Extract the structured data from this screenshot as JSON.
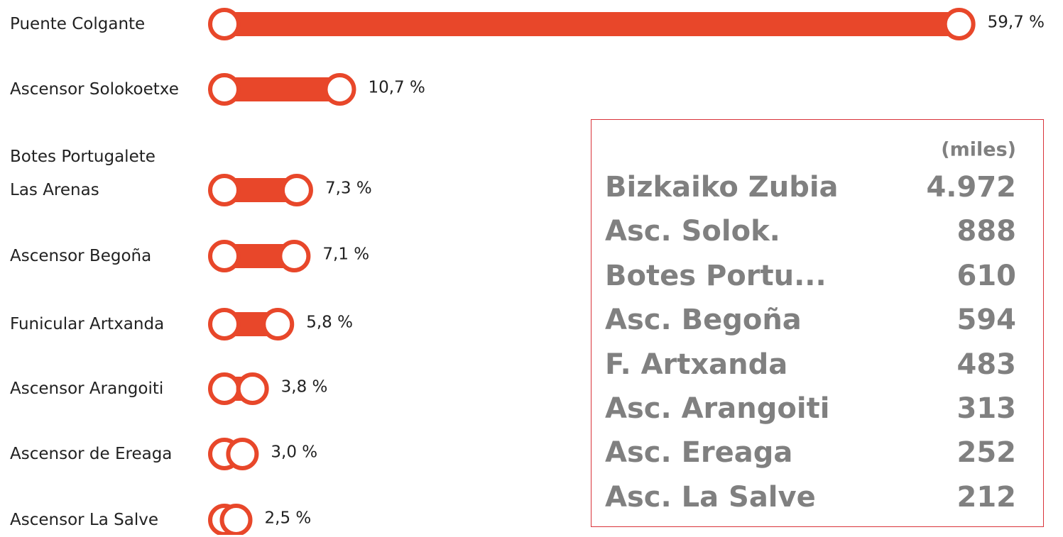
{
  "chart_data": {
    "type": "bar",
    "orientation": "horizontal",
    "color": "#e8472a",
    "categories": [
      "Puente Colgante",
      "Ascensor Solokoetxe",
      "Botes Portugalete\nLas Arenas",
      "Ascensor Begoña",
      "Funicular Artxanda",
      "Ascensor Arangoiti",
      "Ascensor de Ereaga",
      "Ascensor La Salve"
    ],
    "values": [
      59.7,
      10.7,
      7.3,
      7.1,
      5.8,
      3.8,
      3.0,
      2.5
    ],
    "value_labels": [
      "59,7 %",
      "10,7 %",
      "7,3 %",
      "7,1 %",
      "5,8 %",
      "3,8 %",
      "3,0 %",
      "2,5 %"
    ]
  },
  "table": {
    "header": "(miles)",
    "rows": [
      [
        "Bizkaiko Zubia",
        "4.972"
      ],
      [
        "Asc. Solok.",
        "888"
      ],
      [
        "Botes Portu...",
        "610"
      ],
      [
        "Asc. Begoña",
        "594"
      ],
      [
        "F. Artxanda",
        "483"
      ],
      [
        "Asc. Arangoiti",
        "313"
      ],
      [
        "Asc. Ereaga",
        "252"
      ],
      [
        "Asc. La Salve",
        "212"
      ]
    ]
  }
}
